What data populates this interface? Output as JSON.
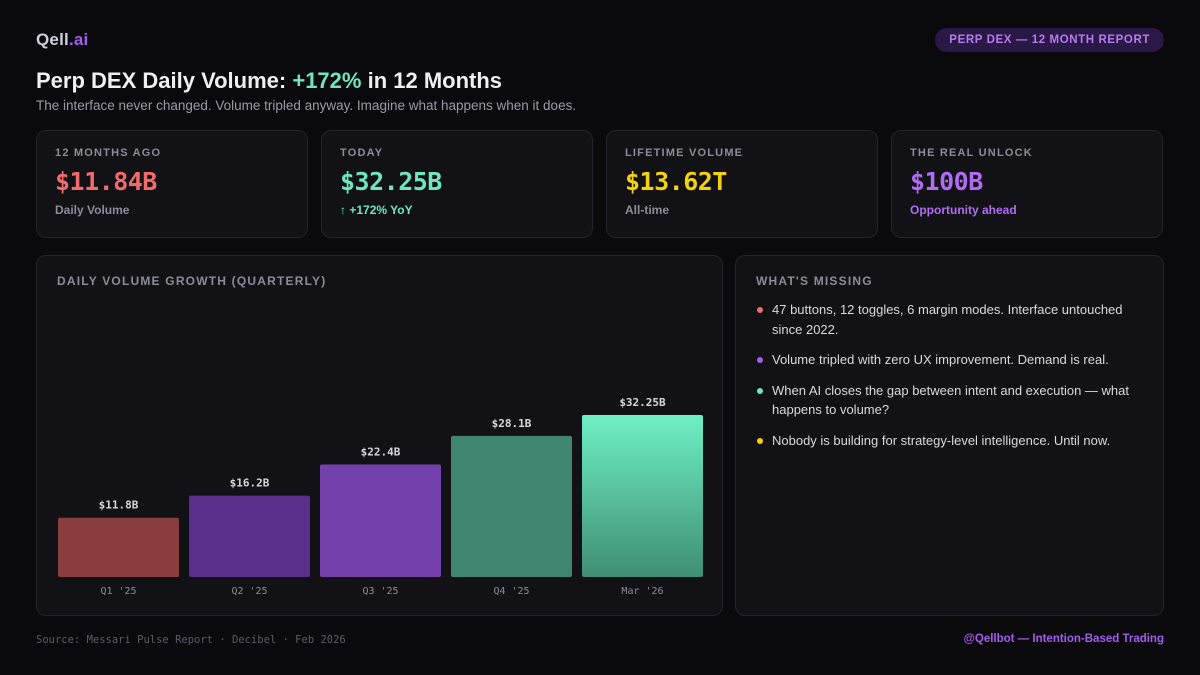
{
  "brand": {
    "name": "Qell",
    "suffix": ".ai",
    "accent": "#a35cf0"
  },
  "badge": "PERP DEX — 12 MONTH REPORT",
  "headline": {
    "prefix": "Perp DEX Daily Volume: ",
    "highlight": "+172%",
    "suffix": " in 12 Months"
  },
  "subhead": "The interface never changed. Volume tripled anyway. Imagine what happens when it does.",
  "stats": [
    {
      "label": "12 MONTHS AGO",
      "value": "$11.84B",
      "note": "Daily Volume",
      "value_color": "#f26b6b",
      "note_color": "#8c8c98"
    },
    {
      "label": "TODAY",
      "value": "$32.25B",
      "note": "↑ +172% YoY",
      "value_color": "#6ee7bf",
      "note_color": "#6ee7bf"
    },
    {
      "label": "LIFETIME VOLUME",
      "value": "$13.62T",
      "note": "All-time",
      "value_color": "#f5d20c",
      "note_color": "#8c8c98"
    },
    {
      "label": "THE REAL UNLOCK",
      "value": "$100B",
      "note": "Opportunity ahead",
      "value_color": "#b06cf5",
      "note_color": "#b06cf5"
    }
  ],
  "chart_panel": {
    "title": "DAILY VOLUME GROWTH (QUARTERLY)"
  },
  "chart_data": {
    "type": "bar",
    "title": "DAILY VOLUME GROWTH (QUARTERLY)",
    "categories": [
      "Q1 '25",
      "Q2 '25",
      "Q3 '25",
      "Q4 '25",
      "Mar '26"
    ],
    "values": [
      11.8,
      16.2,
      22.4,
      28.1,
      32.25
    ],
    "data_labels": [
      "$11.8B",
      "$16.2B",
      "$22.4B",
      "$28.1B",
      "$32.25B"
    ],
    "unit": "B USD",
    "colors": [
      [
        "#8a3d3f",
        "#8a3d3f"
      ],
      [
        "#5a2f8c",
        "#5a2f8c"
      ],
      [
        "#7440ab",
        "#7440ab"
      ],
      [
        "#3f8570",
        "#3f8570"
      ],
      [
        "#6ef0c4",
        "#3f8e74"
      ]
    ],
    "xlabel": "",
    "ylabel": "",
    "grid": false,
    "legend": "none"
  },
  "missing_panel": {
    "title": "WHAT'S MISSING",
    "items": [
      {
        "text": "47 buttons, 12 toggles, 6 margin modes. Interface untouched since 2022.",
        "dot_color": "#f26b6b"
      },
      {
        "text": "Volume tripled with zero UX improvement. Demand is real.",
        "dot_color": "#a35cf0"
      },
      {
        "text": "When AI closes the gap between intent and execution — what happens to volume?",
        "dot_color": "#6ee7bf"
      },
      {
        "text": "Nobody is building for strategy-level intelligence. Until now.",
        "dot_color": "#f5d20c"
      }
    ]
  },
  "footer": {
    "source": "Source: Messari Pulse Report · Decibel · Feb 2026",
    "handle": "@Qellbot — Intention-Based Trading"
  }
}
